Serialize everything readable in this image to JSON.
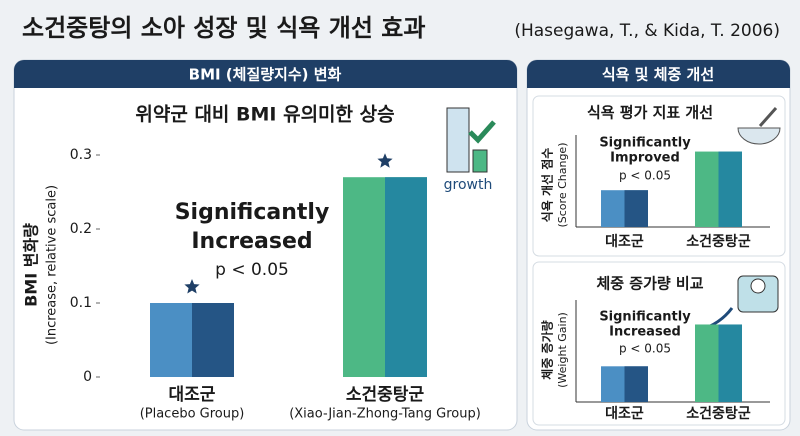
{
  "title": "소건중탕의 소아 성장 및 식욕 개선 효과",
  "citation": "(Hasegawa, T., & Kida, T. 2006)",
  "left_panel_title": "BMI (체질량지수) 변화",
  "right_panel_title": "식욕 및 체중 개선",
  "icon_label": "growth",
  "chart_data": [
    {
      "type": "bar",
      "title": "위약군 대비 BMI 유의미한 상승",
      "ylabel": [
        "BMI 변화량",
        "(Increase, relative scale)"
      ],
      "categories": [
        "대조군",
        "소건중탕군"
      ],
      "category_notes": [
        "(Placebo Group)",
        "(Xiao-Jian-Zhong-Tang Group)"
      ],
      "values": [
        0.1,
        0.27
      ],
      "colors": [
        "#4b8fc4",
        "#4db885"
      ],
      "shade_colors": [
        "#1f4b7a",
        "#1f7fa5"
      ],
      "ylim": [
        0,
        0.3
      ],
      "yticks": [
        0,
        0.1,
        0.2,
        0.3
      ],
      "annotation": [
        "Significantly",
        "Increased"
      ],
      "p_value": "p < 0.05"
    },
    {
      "type": "bar",
      "title": "식욕 평가 지표 개선",
      "ylabel": [
        "식욕 개선 점수",
        "(Score Change)"
      ],
      "categories": [
        "대조군",
        "소건중탕군"
      ],
      "values": [
        40,
        82
      ],
      "colors": [
        "#4b8fc4",
        "#4db885"
      ],
      "shade_colors": [
        "#1f4b7a",
        "#1f7fa5"
      ],
      "ylim": [
        0,
        100
      ],
      "annotation": [
        "Significantly",
        "Improved"
      ],
      "p_value": "p < 0.05"
    },
    {
      "type": "bar",
      "title": "체중 증가량 비교",
      "ylabel": [
        "체중 증가량",
        "(Weight Gain)"
      ],
      "categories": [
        "대조군",
        "소건중탕군"
      ],
      "values": [
        35,
        76
      ],
      "colors": [
        "#4b8fc4",
        "#4db885"
      ],
      "shade_colors": [
        "#1f4b7a",
        "#1f7fa5"
      ],
      "ylim": [
        0,
        100
      ],
      "annotation": [
        "Significantly",
        "Increased"
      ],
      "p_value": "p < 0.05"
    }
  ]
}
